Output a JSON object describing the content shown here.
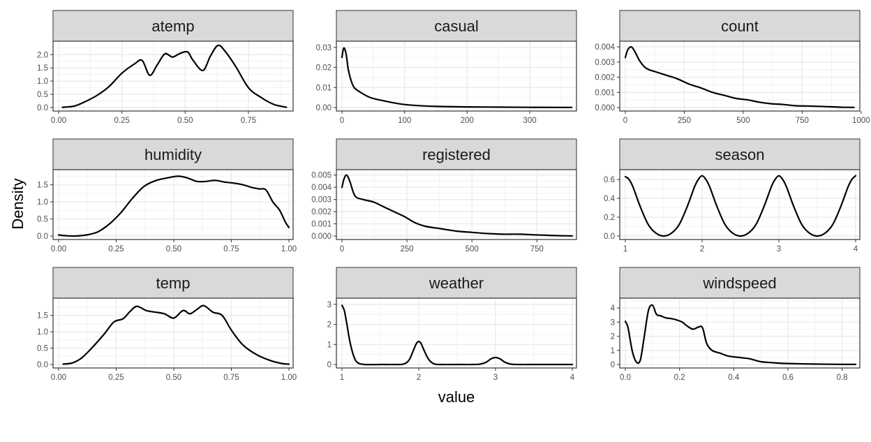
{
  "chart_data": {
    "type": "line",
    "subtype": "faceted density",
    "xlabel": "value",
    "ylabel": "Density",
    "grid": true,
    "facets": [
      {
        "name": "atemp",
        "xlim": [
          0.0,
          0.91
        ],
        "ylim": [
          0,
          2.35
        ],
        "xticks": [
          0.0,
          0.25,
          0.5,
          0.75
        ],
        "xtick_labels": [
          "0.00",
          "0.25",
          "0.50",
          "0.75"
        ],
        "yticks": [
          0.0,
          0.5,
          1.0,
          1.5,
          2.0
        ],
        "ytick_labels": [
          "0.0",
          "0.5",
          "1.0",
          "1.5",
          "2.0"
        ],
        "x": [
          0.015,
          0.06,
          0.1,
          0.15,
          0.2,
          0.25,
          0.3,
          0.33,
          0.36,
          0.39,
          0.42,
          0.45,
          0.48,
          0.51,
          0.53,
          0.57,
          0.6,
          0.63,
          0.66,
          0.7,
          0.75,
          0.8,
          0.85,
          0.9
        ],
        "y": [
          0.01,
          0.05,
          0.2,
          0.45,
          0.8,
          1.3,
          1.65,
          1.78,
          1.22,
          1.62,
          2.03,
          1.91,
          2.05,
          2.1,
          1.8,
          1.4,
          1.95,
          2.35,
          2.1,
          1.55,
          0.75,
          0.38,
          0.12,
          0.01
        ]
      },
      {
        "name": "casual",
        "xlim": [
          0,
          368
        ],
        "ylim": [
          0,
          0.031
        ],
        "xticks": [
          0,
          100,
          200,
          300
        ],
        "xtick_labels": [
          "0",
          "100",
          "200",
          "300"
        ],
        "yticks": [
          0.0,
          0.01,
          0.02,
          0.03
        ],
        "ytick_labels": [
          "0.00",
          "0.01",
          "0.02",
          "0.03"
        ],
        "x": [
          0,
          2,
          4,
          7,
          10,
          15,
          20,
          30,
          45,
          60,
          80,
          100,
          130,
          160,
          200,
          250,
          300,
          350,
          367
        ],
        "y": [
          0.025,
          0.029,
          0.0295,
          0.026,
          0.019,
          0.013,
          0.0098,
          0.0075,
          0.005,
          0.0038,
          0.0025,
          0.0015,
          0.0008,
          0.0005,
          0.0003,
          0.0002,
          0.0001,
          5e-05,
          3e-05
        ]
      },
      {
        "name": "count",
        "xlim": [
          0,
          977
        ],
        "ylim": [
          0,
          0.0041
        ],
        "xticks": [
          0,
          250,
          500,
          750,
          1000
        ],
        "xtick_labels": [
          "0",
          "250",
          "500",
          "750",
          "1000"
        ],
        "yticks": [
          0.0,
          0.001,
          0.002,
          0.003,
          0.004
        ],
        "ytick_labels": [
          "0.000",
          "0.001",
          "0.002",
          "0.003",
          "0.004"
        ],
        "x": [
          0,
          10,
          25,
          40,
          60,
          80,
          100,
          130,
          170,
          220,
          270,
          320,
          370,
          420,
          470,
          520,
          570,
          620,
          670,
          720,
          770,
          820,
          870,
          920,
          970
        ],
        "y": [
          0.0033,
          0.0038,
          0.004,
          0.0037,
          0.0031,
          0.0027,
          0.0025,
          0.00235,
          0.00215,
          0.0019,
          0.00155,
          0.0013,
          0.001,
          0.0008,
          0.0006,
          0.0005,
          0.00035,
          0.00025,
          0.0002,
          0.00012,
          0.0001,
          8e-05,
          5e-05,
          2e-05,
          1e-05
        ]
      },
      {
        "name": "humidity",
        "xlim": [
          0,
          1.0
        ],
        "ylim": [
          0,
          1.82
        ],
        "xticks": [
          0.0,
          0.25,
          0.5,
          0.75,
          1.0
        ],
        "xtick_labels": [
          "0.00",
          "0.25",
          "0.50",
          "0.75",
          "1.00"
        ],
        "yticks": [
          0.0,
          0.5,
          1.0,
          1.5
        ],
        "ytick_labels": [
          "0.0",
          "0.5",
          "1.0",
          "1.5"
        ],
        "x": [
          0.0,
          0.03,
          0.07,
          0.12,
          0.17,
          0.22,
          0.27,
          0.32,
          0.37,
          0.42,
          0.47,
          0.52,
          0.56,
          0.6,
          0.64,
          0.68,
          0.72,
          0.76,
          0.8,
          0.84,
          0.87,
          0.9,
          0.93,
          0.96,
          0.985,
          1.0
        ],
        "y": [
          0.03,
          0.01,
          0.0,
          0.03,
          0.12,
          0.35,
          0.68,
          1.1,
          1.45,
          1.62,
          1.7,
          1.75,
          1.7,
          1.6,
          1.6,
          1.63,
          1.58,
          1.55,
          1.5,
          1.42,
          1.38,
          1.35,
          1.0,
          0.75,
          0.4,
          0.25
        ]
      },
      {
        "name": "registered",
        "xlim": [
          0,
          886
        ],
        "ylim": [
          0,
          0.0051
        ],
        "xticks": [
          0,
          250,
          500,
          750
        ],
        "xtick_labels": [
          "0",
          "250",
          "500",
          "750"
        ],
        "yticks": [
          0.0,
          0.001,
          0.002,
          0.003,
          0.004,
          0.005
        ],
        "ytick_labels": [
          "0.000",
          "0.001",
          "0.002",
          "0.003",
          "0.004",
          "0.005"
        ],
        "x": [
          0,
          8,
          18,
          30,
          50,
          80,
          120,
          160,
          200,
          240,
          280,
          320,
          380,
          440,
          500,
          560,
          620,
          680,
          740,
          800,
          860,
          886
        ],
        "y": [
          0.004,
          0.0047,
          0.005,
          0.0045,
          0.0033,
          0.003,
          0.0028,
          0.0024,
          0.002,
          0.0016,
          0.0011,
          0.0008,
          0.0006,
          0.0004,
          0.0003,
          0.0002,
          0.00015,
          0.00015,
          0.0001,
          5e-05,
          2e-05,
          1e-05
        ]
      },
      {
        "name": "season",
        "xlim": [
          1,
          4
        ],
        "ylim": [
          0,
          0.66
        ],
        "xticks": [
          1,
          2,
          3,
          4
        ],
        "xtick_labels": [
          "1",
          "2",
          "3",
          "4"
        ],
        "yticks": [
          0.0,
          0.2,
          0.4,
          0.6
        ],
        "ytick_labels": [
          "0.0",
          "0.2",
          "0.4",
          "0.6"
        ],
        "x": [
          1.0,
          1.05,
          1.1,
          1.2,
          1.3,
          1.4,
          1.5,
          1.6,
          1.7,
          1.8,
          1.9,
          1.95,
          2.0,
          2.05,
          2.1,
          2.2,
          2.3,
          2.4,
          2.5,
          2.6,
          2.7,
          2.8,
          2.9,
          2.95,
          3.0,
          3.05,
          3.1,
          3.2,
          3.3,
          3.4,
          3.5,
          3.6,
          3.7,
          3.8,
          3.9,
          3.95,
          4.0
        ],
        "y": [
          0.63,
          0.6,
          0.52,
          0.3,
          0.12,
          0.03,
          0.0,
          0.03,
          0.12,
          0.3,
          0.52,
          0.6,
          0.64,
          0.6,
          0.52,
          0.3,
          0.12,
          0.03,
          0.0,
          0.03,
          0.12,
          0.3,
          0.52,
          0.6,
          0.64,
          0.6,
          0.52,
          0.3,
          0.12,
          0.03,
          0.0,
          0.03,
          0.12,
          0.3,
          0.52,
          0.6,
          0.64
        ]
      },
      {
        "name": "temp",
        "xlim": [
          0.0,
          1.0
        ],
        "ylim": [
          0,
          1.9
        ],
        "xticks": [
          0.0,
          0.25,
          0.5,
          0.75,
          1.0
        ],
        "xtick_labels": [
          "0.00",
          "0.25",
          "0.50",
          "0.75",
          "1.00"
        ],
        "yticks": [
          0.0,
          0.5,
          1.0,
          1.5
        ],
        "ytick_labels": [
          "0.0",
          "0.5",
          "1.0",
          "1.5"
        ],
        "x": [
          0.02,
          0.06,
          0.1,
          0.15,
          0.2,
          0.24,
          0.28,
          0.31,
          0.34,
          0.38,
          0.42,
          0.46,
          0.5,
          0.54,
          0.57,
          0.6,
          0.63,
          0.67,
          0.71,
          0.75,
          0.8,
          0.86,
          0.92,
          0.97,
          1.0
        ],
        "y": [
          0.01,
          0.05,
          0.2,
          0.55,
          0.95,
          1.3,
          1.4,
          1.62,
          1.78,
          1.65,
          1.6,
          1.55,
          1.42,
          1.65,
          1.55,
          1.68,
          1.8,
          1.6,
          1.5,
          1.05,
          0.6,
          0.3,
          0.12,
          0.03,
          0.01
        ]
      },
      {
        "name": "weather",
        "xlim": [
          1,
          4
        ],
        "ylim": [
          0,
          3.1
        ],
        "xticks": [
          1,
          2,
          3,
          4
        ],
        "xtick_labels": [
          "1",
          "2",
          "3",
          "4"
        ],
        "yticks": [
          0,
          1,
          2,
          3
        ],
        "ytick_labels": [
          "0",
          "1",
          "2",
          "3"
        ],
        "x": [
          1.0,
          1.03,
          1.06,
          1.1,
          1.15,
          1.2,
          1.3,
          1.5,
          1.7,
          1.8,
          1.87,
          1.93,
          1.97,
          2.0,
          2.03,
          2.07,
          2.13,
          2.2,
          2.3,
          2.5,
          2.7,
          2.8,
          2.88,
          2.94,
          3.0,
          3.06,
          3.12,
          3.2,
          3.3,
          3.5,
          3.8,
          4.0
        ],
        "y": [
          2.95,
          2.7,
          2.1,
          1.2,
          0.45,
          0.1,
          0.0,
          0.0,
          0.0,
          0.02,
          0.2,
          0.7,
          1.05,
          1.15,
          1.05,
          0.7,
          0.25,
          0.03,
          0.0,
          0.0,
          0.0,
          0.02,
          0.12,
          0.28,
          0.35,
          0.28,
          0.12,
          0.02,
          0.0,
          0.0,
          0.0,
          0.0
        ]
      },
      {
        "name": "windspeed",
        "xlim": [
          0,
          0.85
        ],
        "ylim": [
          0,
          4.4
        ],
        "xticks": [
          0.0,
          0.2,
          0.4,
          0.6,
          0.8
        ],
        "xtick_labels": [
          "0.0",
          "0.2",
          "0.4",
          "0.6",
          "0.8"
        ],
        "yticks": [
          0,
          1,
          2,
          3,
          4
        ],
        "ytick_labels": [
          "0",
          "1",
          "2",
          "3",
          "4"
        ],
        "x": [
          0.0,
          0.01,
          0.025,
          0.04,
          0.055,
          0.07,
          0.085,
          0.1,
          0.115,
          0.13,
          0.15,
          0.17,
          0.19,
          0.21,
          0.23,
          0.25,
          0.27,
          0.285,
          0.3,
          0.32,
          0.35,
          0.38,
          0.42,
          0.46,
          0.5,
          0.55,
          0.6,
          0.7,
          0.8,
          0.85
        ],
        "y": [
          3.05,
          2.6,
          1.0,
          0.2,
          0.3,
          2.0,
          3.8,
          4.2,
          3.55,
          3.45,
          3.3,
          3.25,
          3.15,
          3.0,
          2.7,
          2.5,
          2.65,
          2.6,
          1.5,
          1.0,
          0.8,
          0.6,
          0.5,
          0.4,
          0.2,
          0.12,
          0.07,
          0.03,
          0.01,
          0.01
        ]
      }
    ]
  }
}
